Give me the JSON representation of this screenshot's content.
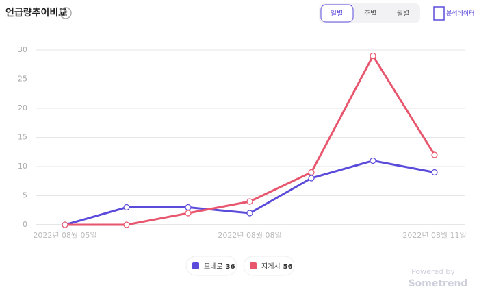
{
  "header": {
    "title": "언급량추이비교",
    "help": "?",
    "tabs": [
      "일별",
      "주별",
      "월별"
    ],
    "export": "분석데이터"
  },
  "chart_data": {
    "type": "line",
    "categories": [
      "2022년 08월 05일",
      null,
      null,
      "2022년 08월 08일",
      null,
      null,
      "2022년 08월 11일"
    ],
    "series": [
      {
        "name": "모네로",
        "total": 36,
        "color": "#5b4bdb",
        "values": [
          0,
          3,
          3,
          2,
          8,
          11,
          9
        ]
      },
      {
        "name": "지게시",
        "total": 56,
        "color": "#e8566e",
        "values": [
          0,
          0,
          2,
          4,
          9,
          29,
          12
        ]
      }
    ],
    "ylim": [
      0,
      30
    ],
    "yticks": [
      0,
      5,
      10,
      15,
      20,
      25,
      30
    ],
    "grid": true
  },
  "footer": {
    "powered_by": "Powered by",
    "brand": "Sometrend"
  }
}
